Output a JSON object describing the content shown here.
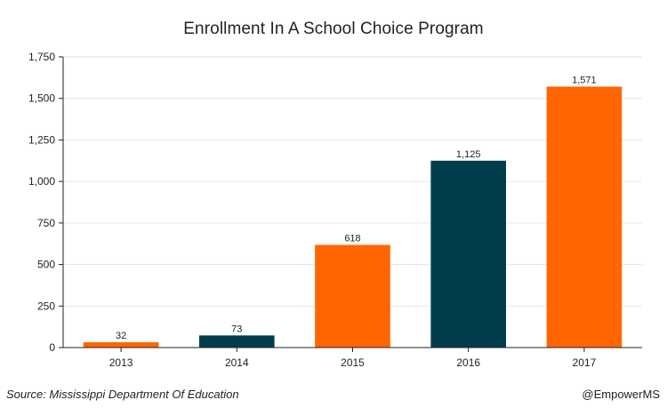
{
  "chart_data": {
    "type": "bar",
    "title": "Enrollment In A School Choice Program",
    "categories": [
      "2013",
      "2014",
      "2015",
      "2016",
      "2017"
    ],
    "values": [
      32,
      73,
      618,
      1125,
      1571
    ],
    "data_labels": [
      "32",
      "73",
      "618",
      "1,125",
      "1,571"
    ],
    "bar_colors": [
      "#ff6600",
      "#003d4d",
      "#ff6600",
      "#003d4d",
      "#ff6600"
    ],
    "ylim": [
      0,
      1750
    ],
    "yticks": [
      0,
      250,
      500,
      750,
      1000,
      1250,
      1500,
      1750
    ],
    "ytick_labels": [
      "0",
      "250",
      "500",
      "750",
      "1,000",
      "1,250",
      "1,500",
      "1,750"
    ],
    "xlabel": "",
    "ylabel": "",
    "grid": "horizontal"
  },
  "footer": {
    "source": "Source: Mississippi Department Of Education",
    "handle": "@EmpowerMS"
  },
  "colors": {
    "orange": "#ff6600",
    "navy": "#003d4d",
    "grid": "#e6e6e6",
    "axis": "#222222"
  }
}
